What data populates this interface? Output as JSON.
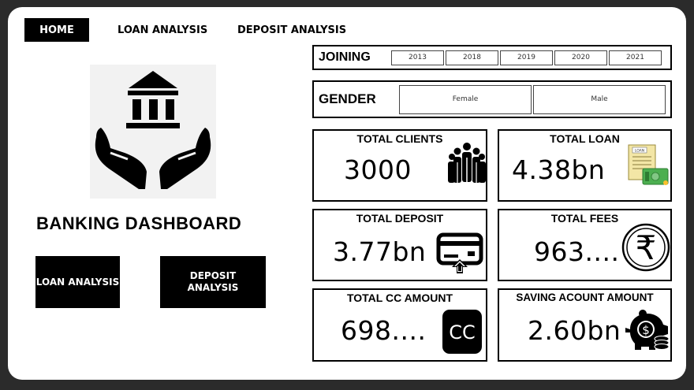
{
  "nav": {
    "home": "HOME",
    "loan_analysis": "LOAN ANALYSIS",
    "deposit_analysis": "DEPOSIT ANALYSIS"
  },
  "logo": {
    "icon": "bank-hands-icon"
  },
  "title": "BANKING DASHBOARD",
  "buttons": {
    "loan_analysis": "LOAN ANALYSIS",
    "deposit_analysis": "DEPOSIT ANALYSIS"
  },
  "slicers": {
    "joining": {
      "label": "JOINING",
      "options": [
        "2013",
        "2018",
        "2019",
        "2020",
        "2021"
      ]
    },
    "gender": {
      "label": "GENDER",
      "options": [
        "Female",
        "Male"
      ]
    }
  },
  "kpis": {
    "total_clients": {
      "title": "TOTAL CLIENTS",
      "value": "3000",
      "icon": "people-group-icon"
    },
    "total_loan": {
      "title": "TOTAL LOAN",
      "value": "4.38bn",
      "icon": "loan-document-icon",
      "icon_text": "LOAN"
    },
    "total_deposit": {
      "title": "TOTAL DEPOSIT",
      "value": "3.77bn",
      "icon": "card-deposit-icon"
    },
    "total_fees": {
      "title": "TOTAL  FEES",
      "value": "963....",
      "icon": "rupee-coin-icon",
      "icon_text": "₹"
    },
    "total_cc_amount": {
      "title": "TOTAL CC AMOUNT",
      "value": "698....",
      "icon": "cc-badge-icon",
      "icon_text": "CC"
    },
    "saving_account_amount": {
      "title": "SAVING ACOUNT AMOUNT",
      "value": "2.60bn",
      "icon": "piggy-bank-icon",
      "icon_text": "$"
    }
  },
  "colors": {
    "background": "#2b2b2b",
    "canvas": "#ffffff",
    "accent": "#000000",
    "loan_icon": "#f3e6a6",
    "money_green": "#4caf50"
  }
}
